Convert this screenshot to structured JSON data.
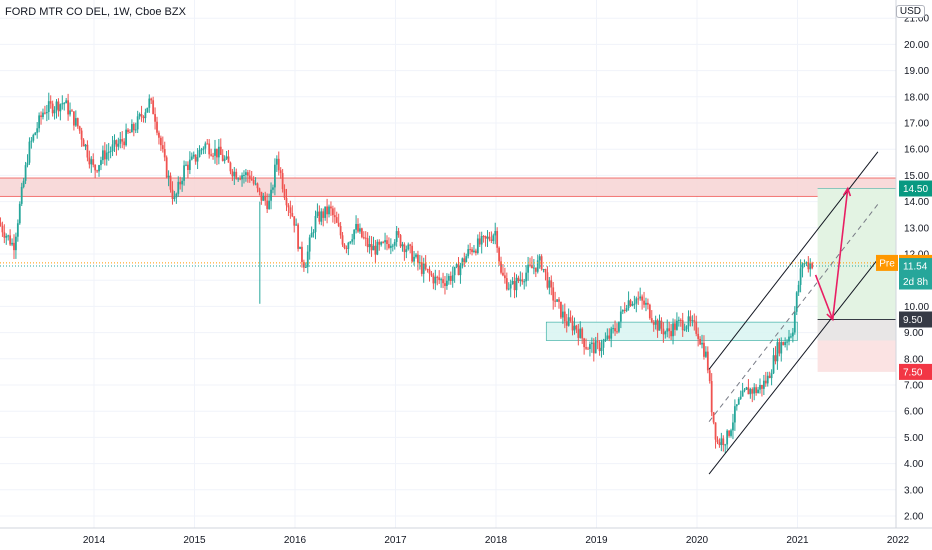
{
  "header": {
    "title": "FORD MTR CO DEL, 1W, Cboe BZX",
    "currency": "USD"
  },
  "colors": {
    "up": "#26a69a",
    "down": "#ef5350",
    "resistance": "#f7d4d4",
    "support": "#d8f5f1",
    "target": "#e3f3e3",
    "stop": "#fbe3e3",
    "arrow": "#e91e63"
  },
  "chart_data": {
    "type": "candlestick",
    "x_ticks": [
      "2014",
      "2015",
      "2016",
      "2017",
      "2018",
      "2019",
      "2020",
      "2021",
      "2022"
    ],
    "y_ticks": [
      2.0,
      3.0,
      4.0,
      5.0,
      6.0,
      7.0,
      8.0,
      9.0,
      10.0,
      11.0,
      12.0,
      13.0,
      14.0,
      15.0,
      16.0,
      17.0,
      18.0,
      19.0,
      20.0,
      21.0
    ],
    "ylim": [
      1.5,
      21.5
    ],
    "xlim": [
      2013.05,
      2022.0
    ],
    "price_path": [
      [
        2013.05,
        13.2
      ],
      [
        2013.2,
        12.3
      ],
      [
        2013.35,
        16.0
      ],
      [
        2013.5,
        17.5
      ],
      [
        2013.7,
        17.8
      ],
      [
        2013.85,
        16.8
      ],
      [
        2014.0,
        15.2
      ],
      [
        2014.1,
        15.8
      ],
      [
        2014.25,
        16.2
      ],
      [
        2014.4,
        16.8
      ],
      [
        2014.55,
        17.8
      ],
      [
        2014.6,
        17.4
      ],
      [
        2014.7,
        15.5
      ],
      [
        2014.8,
        14.0
      ],
      [
        2014.9,
        15.3
      ],
      [
        2015.0,
        15.6
      ],
      [
        2015.1,
        16.2
      ],
      [
        2015.25,
        15.8
      ],
      [
        2015.4,
        15.1
      ],
      [
        2015.55,
        15.0
      ],
      [
        2015.65,
        14.2
      ],
      [
        2015.75,
        13.9
      ],
      [
        2015.82,
        15.7
      ],
      [
        2015.9,
        14.3
      ],
      [
        2016.0,
        13.2
      ],
      [
        2016.05,
        12.0
      ],
      [
        2016.1,
        11.6
      ],
      [
        2016.2,
        13.3
      ],
      [
        2016.35,
        13.7
      ],
      [
        2016.5,
        12.3
      ],
      [
        2016.6,
        13.0
      ],
      [
        2016.75,
        12.2
      ],
      [
        2016.85,
        12.2
      ],
      [
        2016.95,
        12.5
      ],
      [
        2017.0,
        12.7
      ],
      [
        2017.1,
        12.3
      ],
      [
        2017.25,
        11.5
      ],
      [
        2017.4,
        11.0
      ],
      [
        2017.5,
        11.0
      ],
      [
        2017.6,
        11.3
      ],
      [
        2017.75,
        12.2
      ],
      [
        2017.9,
        12.5
      ],
      [
        2018.0,
        12.9
      ],
      [
        2018.05,
        11.2
      ],
      [
        2018.15,
        10.7
      ],
      [
        2018.3,
        11.3
      ],
      [
        2018.45,
        11.7
      ],
      [
        2018.55,
        10.5
      ],
      [
        2018.7,
        9.4
      ],
      [
        2018.8,
        9.2
      ],
      [
        2018.9,
        8.5
      ],
      [
        2019.0,
        8.4
      ],
      [
        2019.1,
        8.7
      ],
      [
        2019.2,
        9.2
      ],
      [
        2019.3,
        10.2
      ],
      [
        2019.4,
        10.3
      ],
      [
        2019.5,
        10.0
      ],
      [
        2019.6,
        9.3
      ],
      [
        2019.7,
        9.0
      ],
      [
        2019.8,
        9.3
      ],
      [
        2019.9,
        9.4
      ],
      [
        2020.0,
        9.1
      ],
      [
        2020.1,
        8.0
      ],
      [
        2020.15,
        6.0
      ],
      [
        2020.2,
        4.8
      ],
      [
        2020.3,
        5.0
      ],
      [
        2020.4,
        6.2
      ],
      [
        2020.5,
        6.8
      ],
      [
        2020.6,
        6.8
      ],
      [
        2020.7,
        7.2
      ],
      [
        2020.8,
        8.4
      ],
      [
        2020.9,
        8.8
      ],
      [
        2020.95,
        9.1
      ],
      [
        2021.0,
        10.6
      ],
      [
        2021.05,
        11.7
      ],
      [
        2021.1,
        11.6
      ],
      [
        2021.15,
        11.66
      ]
    ],
    "spike": {
      "x": 2015.65,
      "low": 10.1
    },
    "resistance_zone": {
      "from": 2013.05,
      "to": 2022.0,
      "low": 14.2,
      "high": 14.9
    },
    "support_zone": {
      "from": 2018.5,
      "to": 2021.0,
      "low": 8.7,
      "high": 9.4
    },
    "channel": {
      "lower": [
        [
          2020.12,
          3.6
        ],
        [
          2021.8,
          11.8
        ]
      ],
      "upper": [
        [
          2020.12,
          7.6
        ],
        [
          2021.8,
          15.9
        ]
      ],
      "mid": [
        [
          2020.12,
          5.6
        ],
        [
          2021.8,
          13.9
        ]
      ]
    },
    "trade": {
      "from": 2021.2,
      "to": 2022.0,
      "entry": 9.5,
      "target": 14.5,
      "stop": 7.5
    },
    "arrows": [
      {
        "from": [
          2021.18,
          11.2
        ],
        "to": [
          2021.35,
          9.5
        ]
      },
      {
        "from": [
          2021.35,
          9.5
        ],
        "to": [
          2021.5,
          14.5
        ]
      }
    ],
    "price_tags": [
      {
        "value": 14.5,
        "label": "14.50",
        "color": "#089981"
      },
      {
        "value": 11.66,
        "label": "11.66",
        "prefix": "Pre",
        "color": "#ff9800"
      },
      {
        "value": 11.54,
        "label": "11.54",
        "color": "#26a69a"
      },
      {
        "value": 10.95,
        "label": "2d 8h",
        "color": "#26a69a"
      },
      {
        "value": 9.5,
        "label": "9.50",
        "color": "#363a45"
      },
      {
        "value": 7.5,
        "label": "7.50",
        "color": "#f23645"
      }
    ]
  }
}
